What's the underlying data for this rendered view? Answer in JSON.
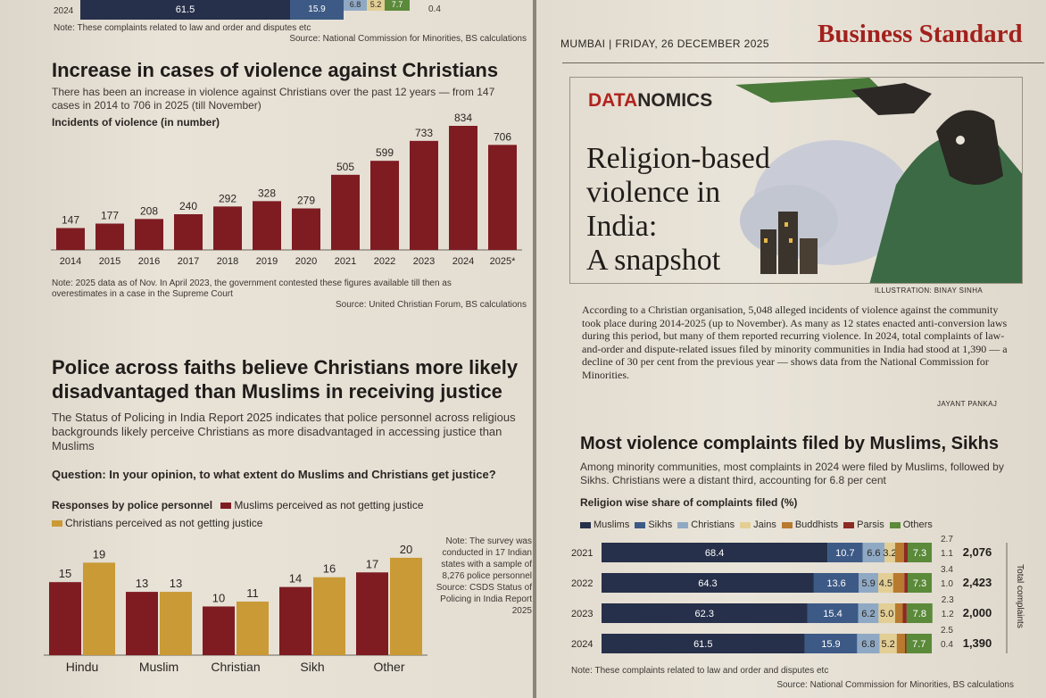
{
  "left": {
    "top_strip": {
      "year": "2024",
      "vals": [
        "61.5",
        "15.9",
        "6.8",
        "5.2",
        "7.7"
      ],
      "side_val": "0.4"
    },
    "top_note": "Note: These complaints related to law and order and disputes etc",
    "top_source": "Source: National Commission for Minorities, BS calculations",
    "chart1": {
      "title": "Increase in cases of violence against Christians",
      "desc": "There has been an increase in violence against Christians over the past 12 years — from 147 cases in 2014 to 706 in 2025 (till November)",
      "ylabel": "Incidents of violence (in number)",
      "note": "Note: 2025 data as of Nov. In April 2023, the government contested these figures available till then as overestimates in a case in the Supreme Court",
      "source": "Source: United Christian Forum, BS calculations"
    },
    "chart2": {
      "title": "Police across faiths believe Christians more likely disadvantaged than Muslims in receiving justice",
      "desc": "The Status of Policing in India Report 2025 indicates that police personnel across religious backgrounds likely perceive Christians as more disadvantaged in accessing justice than Muslims",
      "question": "Question: In your opinion, to what extent do Muslims and Christians get justice?",
      "responses_label": "Responses by police personnel",
      "legend_muslims": "Muslims perceived as not getting justice",
      "legend_christians": "Christians perceived as not getting justice",
      "note": "Note: The survey was conducted in 17 Indian states with a sample of 8,276 police personnel Source: CSDS Status of Policing in India Report 2025"
    }
  },
  "right": {
    "dateline": "MUMBAI | FRIDAY, 26 DECEMBER 2025",
    "masthead": "Business Standard",
    "section_a": "DATA",
    "section_b": "NOMICS",
    "headline": [
      "Religion-based",
      "violence in",
      "India:",
      "A snapshot"
    ],
    "illustration_credit": "ILLUSTRATION: BINAY SINHA",
    "body": "According to a Christian organisation, 5,048 alleged incidents of violence against the community took place during 2014-2025 (up to November). As many as 12 states enacted anti-conversion laws during this period, but many of them reported recurring violence. In 2024, total complaints of law-and-order and dispute-related issues filed by minority communities in India had stood at 1,390 — a decline of 30 per cent from the previous year — shows data from the National Commission for Minorities.",
    "byline": "JAYANT PANKAJ",
    "chart3": {
      "title": "Most violence complaints filed by Muslims, Sikhs",
      "desc": "Among minority communities, most complaints in 2024 were filed by Muslims, followed by Sikhs. Christians were a distant third, accounting for 6.8 per cent",
      "subtitle": "Religion wise share of complaints filed (%)",
      "total_label": "Total complaints",
      "note": "Note: These complaints related to law and order and disputes etc",
      "source": "Source: National Commission for Minorities, BS calculations"
    }
  },
  "chart_data": [
    {
      "type": "bar",
      "title": "Increase in cases of violence against Christians",
      "ylabel": "Incidents of violence (in number)",
      "categories": [
        "2014",
        "2015",
        "2016",
        "2017",
        "2018",
        "2019",
        "2020",
        "2021",
        "2022",
        "2023",
        "2024",
        "2025*"
      ],
      "values": [
        147,
        177,
        208,
        240,
        292,
        328,
        279,
        505,
        599,
        733,
        834,
        706
      ],
      "ylim": [
        0,
        900
      ],
      "color": "#7e1c22"
    },
    {
      "type": "bar",
      "title": "Police across faiths believe Christians more likely disadvantaged than Muslims in receiving justice",
      "categories": [
        "Hindu",
        "Muslim",
        "Christian",
        "Sikh",
        "Other"
      ],
      "series": [
        {
          "name": "Muslims perceived as not getting justice",
          "values": [
            15,
            13,
            10,
            14,
            17
          ],
          "color": "#7e1c22"
        },
        {
          "name": "Christians perceived as not getting justice",
          "values": [
            19,
            13,
            11,
            16,
            20
          ],
          "color": "#c99a35"
        }
      ],
      "ylim": [
        0,
        22
      ]
    },
    {
      "type": "bar",
      "title": "Most violence complaints filed by Muslims, Sikhs",
      "subtitle": "Religion wise share of complaints filed (%)",
      "categories": [
        "2021",
        "2022",
        "2023",
        "2024"
      ],
      "series": [
        {
          "name": "Muslims",
          "values": [
            68.4,
            64.3,
            62.3,
            61.5
          ],
          "color": "#26304a"
        },
        {
          "name": "Sikhs",
          "values": [
            10.7,
            13.6,
            15.4,
            15.9
          ],
          "color": "#3d5a86"
        },
        {
          "name": "Christians",
          "values": [
            6.6,
            5.9,
            6.2,
            6.8
          ],
          "color": "#8fa9c4"
        },
        {
          "name": "Jains",
          "values": [
            3.2,
            4.5,
            5.0,
            5.2
          ],
          "color": "#e3cf95"
        },
        {
          "name": "Buddhists",
          "values": [
            2.7,
            3.4,
            2.3,
            2.5
          ],
          "color": "#b87a2e"
        },
        {
          "name": "Parsis",
          "values": [
            1.1,
            1.0,
            1.2,
            0.4
          ],
          "color": "#8c2a24"
        },
        {
          "name": "Others",
          "values": [
            7.3,
            7.3,
            7.8,
            7.7
          ],
          "color": "#5b8a3a"
        }
      ],
      "totals": [
        "2,076",
        "2,423",
        "2,000",
        "1,390"
      ]
    }
  ]
}
